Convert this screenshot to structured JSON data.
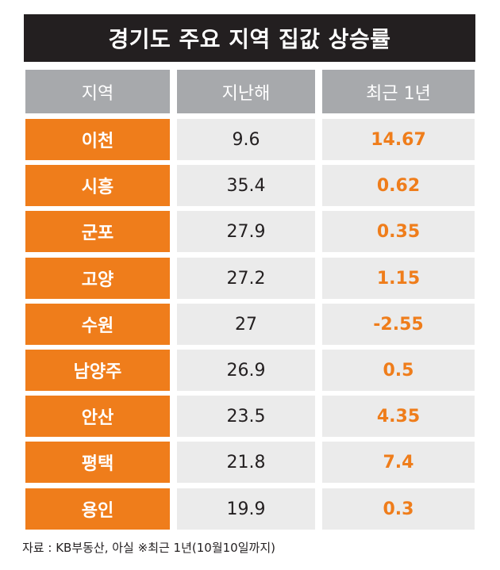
{
  "title": "경기도 주요 지역 집값 상승률",
  "headers": [
    "지역",
    "지난해",
    "최근 1년"
  ],
  "rows": [
    {
      "region": "이천",
      "last_year": "9.6",
      "recent_1y": "14.67"
    },
    {
      "region": "시흥",
      "last_year": "35.4",
      "recent_1y": "0.62"
    },
    {
      "region": "군포",
      "last_year": "27.9",
      "recent_1y": "0.35"
    },
    {
      "region": "고양",
      "last_year": "27.2",
      "recent_1y": "1.15"
    },
    {
      "region": "수원",
      "last_year": "27",
      "recent_1y": "-2.55"
    },
    {
      "region": "남양주",
      "last_year": "26.9",
      "recent_1y": "0.5"
    },
    {
      "region": "안산",
      "last_year": "23.5",
      "recent_1y": "4.35"
    },
    {
      "region": "평택",
      "last_year": "21.8",
      "recent_1y": "7.4"
    },
    {
      "region": "용인",
      "last_year": "19.9",
      "recent_1y": "0.3"
    }
  ],
  "footer": "자료 : KB부동산, 아실 ※최근 1년(10월10일까지)",
  "colors": {
    "orange": "#ef7d1b",
    "header_gray": "#a7a9ac",
    "cell_gray": "#ebebeb",
    "title_bg": "#231f20"
  }
}
